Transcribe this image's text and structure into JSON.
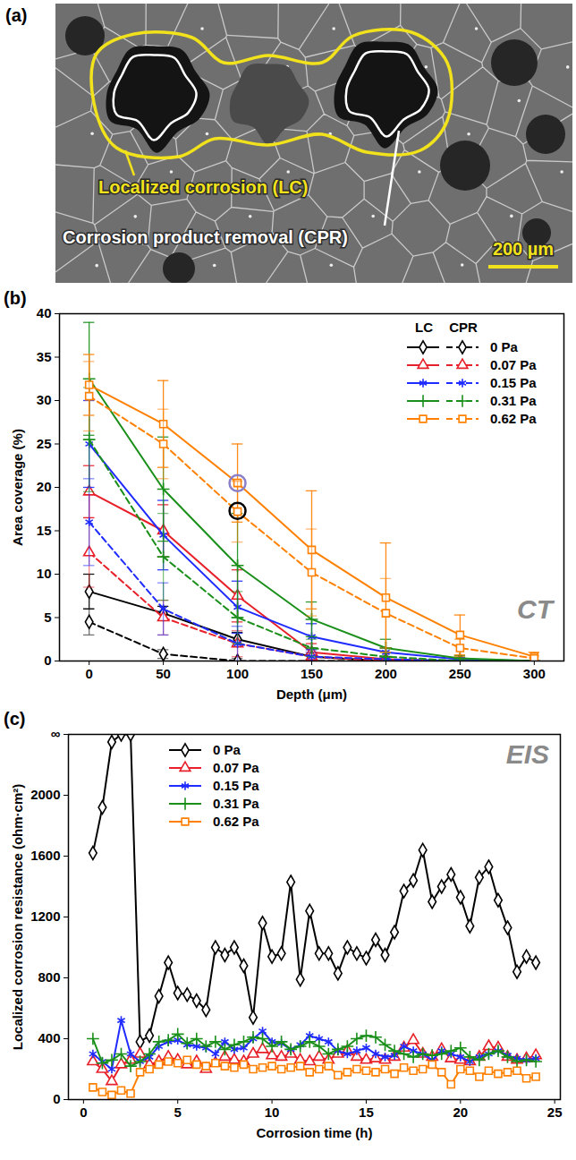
{
  "image_panel": {
    "panel": "(a)",
    "type": "image",
    "annotations": [
      {
        "text": "Localized corrosion (LC)",
        "color": "#f2e21c"
      },
      {
        "text": "Corrosion product removal (CPR)",
        "color": "#ffffff"
      }
    ],
    "scale_bar": "200 µm"
  },
  "chart_data": [
    {
      "panel": "(b)",
      "type": "line",
      "x_label": "Depth (μm)",
      "y_label": "Area coverage (%)",
      "annotations": [
        "CT"
      ],
      "legend": "top-right",
      "xlim": [
        -20,
        320
      ],
      "xticks": [
        0,
        50,
        100,
        150,
        200,
        250,
        300
      ],
      "ylim": [
        0,
        40
      ],
      "yticks": [
        0,
        5,
        10,
        15,
        20,
        25,
        30,
        35,
        40
      ],
      "x": [
        0,
        50,
        100,
        150,
        200,
        250,
        300
      ],
      "series": [
        {
          "name": "0 Pa",
          "group": "LC",
          "color": "#000000",
          "marker": "diamond",
          "line_style": "solid",
          "values": [
            8,
            5.5,
            2.5,
            0.5,
            0,
            0,
            0
          ],
          "errors": [
            2,
            0.8,
            0.8,
            0.3,
            0,
            0,
            0
          ]
        },
        {
          "name": "0 Pa",
          "group": "CPR",
          "color": "#000000",
          "marker": "diamond",
          "line_style": "dashed",
          "values": [
            4.5,
            0.8,
            0,
            0,
            0,
            0,
            0
          ],
          "errors": [
            1.5,
            0.5,
            0.3,
            0,
            0,
            0,
            0
          ]
        },
        {
          "name": "0.07 Pa",
          "group": "LC",
          "color": "#e8202a",
          "marker": "triangle",
          "line_style": "solid",
          "values": [
            19.5,
            15,
            7.5,
            1,
            0.2,
            0,
            0
          ],
          "errors": [
            3,
            3,
            3,
            1,
            0.3,
            0,
            0
          ]
        },
        {
          "name": "0.07 Pa",
          "group": "CPR",
          "color": "#e8202a",
          "marker": "triangle",
          "line_style": "dashed",
          "values": [
            12.5,
            5,
            2,
            0.5,
            0,
            0,
            0
          ],
          "errors": [
            4,
            2,
            1.5,
            0.5,
            0,
            0,
            0
          ]
        },
        {
          "name": "0.15 Pa",
          "group": "LC",
          "color": "#1f2bff",
          "marker": "asterisk",
          "line_style": "solid",
          "values": [
            25,
            14.5,
            6.2,
            2.8,
            1,
            0.2,
            0
          ],
          "errors": [
            5,
            4,
            3,
            1.5,
            0.5,
            0.2,
            0
          ]
        },
        {
          "name": "0.15 Pa",
          "group": "CPR",
          "color": "#1f2bff",
          "marker": "asterisk",
          "line_style": "dashed",
          "values": [
            16,
            6,
            2,
            0.5,
            0.2,
            0,
            0
          ],
          "errors": [
            5,
            3,
            2,
            0.5,
            0.2,
            0,
            0
          ]
        },
        {
          "name": "0.31 Pa",
          "group": "LC",
          "color": "#1a8f1a",
          "marker": "plus",
          "line_style": "solid",
          "values": [
            32.5,
            19.8,
            11,
            4.8,
            1.5,
            0.3,
            0
          ],
          "errors": [
            6.5,
            6,
            6,
            2,
            1,
            0.3,
            0
          ]
        },
        {
          "name": "0.31 Pa",
          "group": "CPR",
          "color": "#1a8f1a",
          "marker": "plus",
          "line_style": "dashed",
          "values": [
            25.5,
            12,
            5,
            1.5,
            0.5,
            0,
            0
          ],
          "errors": [
            6,
            5,
            3,
            1,
            0.5,
            0,
            0
          ]
        },
        {
          "name": "0.62 Pa",
          "group": "LC",
          "color": "#ff8000",
          "marker": "square",
          "line_style": "solid",
          "values": [
            31.8,
            27.3,
            20.5,
            12.8,
            7.3,
            3,
            0.5
          ],
          "errors": [
            3.5,
            5,
            4.5,
            6.8,
            6.3,
            2.3,
            0.5
          ]
        },
        {
          "name": "0.62 Pa",
          "group": "CPR",
          "color": "#ff8000",
          "marker": "square",
          "line_style": "dashed",
          "values": [
            30.5,
            25,
            17.2,
            10.2,
            5.5,
            1.5,
            0.3
          ],
          "errors": [
            4,
            4,
            3.5,
            5,
            4,
            1,
            0.3
          ]
        }
      ],
      "highlights": [
        {
          "x": 100,
          "y": 20.5,
          "color": "#8a7fc8"
        },
        {
          "x": 100,
          "y": 17.3,
          "color": "#000000"
        }
      ]
    },
    {
      "panel": "(c)",
      "type": "line",
      "x_label": "Corrosion time (h)",
      "y_label": "Localized corrosion resistance (ohm·cm²)",
      "annotations": [
        "EIS"
      ],
      "legend": "top",
      "xlim": [
        -0.8,
        25.3
      ],
      "xticks": [
        0,
        5,
        10,
        15,
        20,
        25
      ],
      "ylim": [
        0,
        2400
      ],
      "yticks": [
        0,
        400,
        800,
        1200,
        1600,
        2000,
        {
          "value": 2400,
          "label": "∞"
        }
      ],
      "x": [
        0.5,
        1,
        1.5,
        2,
        2.5,
        3,
        3.5,
        4,
        4.5,
        5,
        5.5,
        6,
        6.5,
        7,
        7.5,
        8,
        8.5,
        9,
        9.5,
        10,
        10.5,
        11,
        11.5,
        12,
        12.5,
        13,
        13.5,
        14,
        14.5,
        15,
        15.5,
        16,
        16.5,
        17,
        17.5,
        18,
        18.5,
        19,
        19.5,
        20,
        20.5,
        21,
        21.5,
        22,
        22.5,
        23,
        23.5,
        24
      ],
      "series": [
        {
          "name": "0 Pa",
          "color": "#000000",
          "marker": "diamond",
          "line_style": "solid",
          "values": [
            1620,
            1920,
            2350,
            2400,
            2400,
            380,
            420,
            680,
            900,
            700,
            690,
            650,
            590,
            1000,
            950,
            1000,
            880,
            540,
            1160,
            940,
            960,
            1430,
            790,
            1240,
            960,
            960,
            830,
            1000,
            960,
            930,
            1050,
            950,
            1100,
            1370,
            1440,
            1640,
            1300,
            1400,
            1480,
            1330,
            1140,
            1460,
            1530,
            1310,
            1130,
            840,
            940,
            900
          ]
        },
        {
          "name": "0.07 Pa",
          "color": "#e8202a",
          "marker": "triangle",
          "line_style": "solid",
          "values": [
            250,
            200,
            120,
            230,
            260,
            300,
            230,
            250,
            280,
            260,
            230,
            250,
            200,
            240,
            280,
            260,
            250,
            300,
            330,
            290,
            280,
            300,
            260,
            250,
            280,
            260,
            300,
            320,
            280,
            260,
            270,
            260,
            280,
            340,
            390,
            300,
            280,
            330,
            270,
            260,
            250,
            280,
            350,
            340,
            280,
            260,
            270,
            290
          ]
        },
        {
          "name": "0.15 Pa",
          "color": "#1f2bff",
          "marker": "asterisk",
          "line_style": "solid",
          "values": [
            300,
            250,
            200,
            520,
            300,
            250,
            280,
            350,
            380,
            390,
            360,
            350,
            340,
            300,
            380,
            330,
            340,
            400,
            450,
            380,
            370,
            330,
            360,
            420,
            400,
            380,
            320,
            300,
            320,
            340,
            300,
            280,
            290,
            350,
            320,
            300,
            260,
            320,
            300,
            280,
            250,
            280,
            300,
            320,
            290,
            270,
            260,
            270
          ]
        },
        {
          "name": "0.31 Pa",
          "color": "#1a8f1a",
          "marker": "plus",
          "line_style": "solid",
          "values": [
            400,
            240,
            260,
            300,
            220,
            250,
            300,
            380,
            390,
            430,
            370,
            400,
            350,
            380,
            330,
            360,
            380,
            410,
            400,
            350,
            380,
            330,
            350,
            380,
            350,
            300,
            330,
            350,
            400,
            420,
            410,
            360,
            320,
            300,
            280,
            300,
            290,
            300,
            320,
            340,
            280,
            260,
            300,
            320,
            280,
            250,
            260,
            250
          ]
        },
        {
          "name": "0.62 Pa",
          "color": "#ff8000",
          "marker": "square",
          "line_style": "solid",
          "values": [
            80,
            50,
            30,
            60,
            40,
            180,
            200,
            230,
            250,
            240,
            260,
            230,
            220,
            240,
            220,
            210,
            230,
            200,
            210,
            220,
            200,
            210,
            220,
            180,
            200,
            220,
            160,
            180,
            200,
            190,
            180,
            200,
            170,
            210,
            190,
            200,
            230,
            180,
            100,
            200,
            190,
            150,
            190,
            170,
            180,
            190,
            140,
            150
          ]
        }
      ]
    }
  ]
}
